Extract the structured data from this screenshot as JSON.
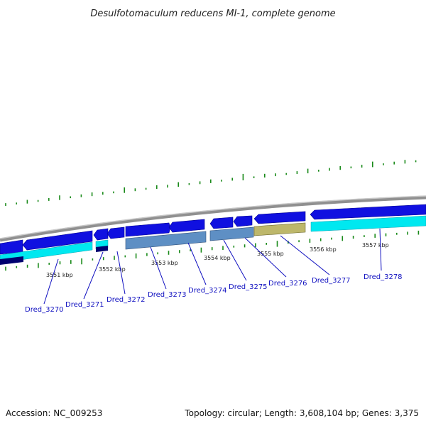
{
  "title": "Desulfotomaculum reducens MI-1, complete genome",
  "footer": {
    "accession": "Accession: NC_009253",
    "summary": "Topology: circular; Length: 3,608,104 bp; Genes: 3,375"
  },
  "colors": {
    "backbone": "#8a8a8a",
    "forward_cds": "#1010e0",
    "reverse_cds": "#2020d0",
    "cyan_track": "#00e5f0",
    "steel_track": "#5a8cc0",
    "olive_track": "#bdb76b",
    "navy_track": "#000070",
    "gc_ticks": "#1a8a1a",
    "label_lines": "#1010c0"
  },
  "kbp_labels": [
    "3551 kbp",
    "3552 kbp",
    "3553 kbp",
    "3554 kbp",
    "3555 kbp",
    "3556 kbp",
    "3557 kbp"
  ],
  "genes": [
    "Dred_3270",
    "Dred_3271",
    "Dred_3272",
    "Dred_3273",
    "Dred_3274",
    "Dred_3275",
    "Dred_3276",
    "Dred_3277",
    "Dred_3278"
  ]
}
